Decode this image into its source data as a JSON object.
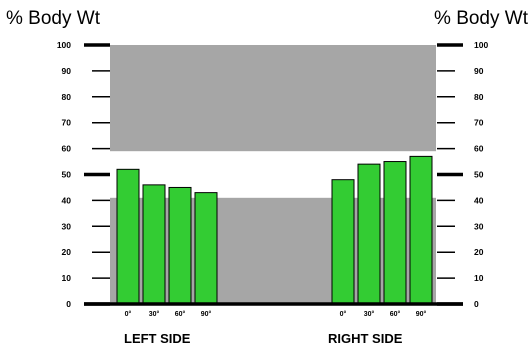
{
  "chart_data": {
    "type": "bar",
    "ylabel_left": "% Body Wt",
    "ylabel_right": "% Body Wt",
    "ylim": [
      0,
      100
    ],
    "yticks": [
      "0",
      "10",
      "20",
      "30",
      "40",
      "50",
      "60",
      "70",
      "80",
      "90",
      "100"
    ],
    "bands": [
      {
        "from": 0,
        "to": 41
      },
      {
        "from": 59,
        "to": 100
      }
    ],
    "colors": {
      "bar": "#33cc33",
      "bar_edge": "#000000",
      "band": "#a6a6a6",
      "axis": "#000000"
    },
    "groups": [
      {
        "label": "LEFT SIDE",
        "categories": [
          "0°",
          "30°",
          "60°",
          "90°"
        ],
        "values": [
          52,
          46,
          45,
          43
        ]
      },
      {
        "label": "RIGHT SIDE",
        "categories": [
          "0°",
          "30°",
          "60°",
          "90°"
        ],
        "values": [
          48,
          54,
          55,
          57
        ]
      }
    ]
  }
}
